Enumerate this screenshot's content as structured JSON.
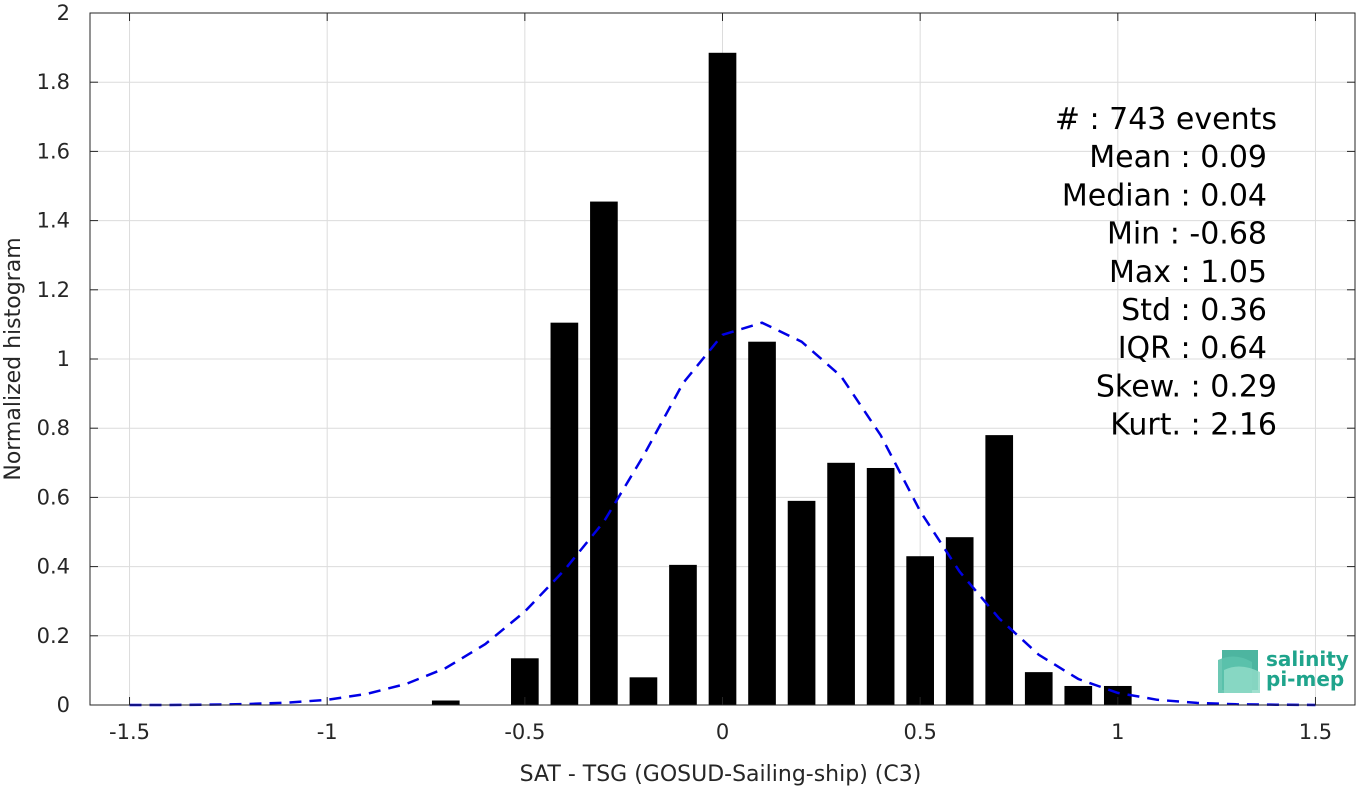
{
  "chart_data": {
    "type": "bar",
    "title": "",
    "xlabel": "SAT - TSG (GOSUD-Sailing-ship) (C3)",
    "ylabel": "Normalized histogram",
    "xlim": [
      -1.6,
      1.6
    ],
    "ylim": [
      0,
      2
    ],
    "grid": true,
    "x_ticks": [
      {
        "value": -1.5,
        "label": "-1.5"
      },
      {
        "value": -1,
        "label": "-1"
      },
      {
        "value": -0.5,
        "label": "-0.5"
      },
      {
        "value": 0,
        "label": "0"
      },
      {
        "value": 0.5,
        "label": "0.5"
      },
      {
        "value": 1,
        "label": "1"
      },
      {
        "value": 1.5,
        "label": "1.5"
      }
    ],
    "y_ticks": [
      {
        "value": 0,
        "label": "0"
      },
      {
        "value": 0.2,
        "label": "0.2"
      },
      {
        "value": 0.4,
        "label": "0.4"
      },
      {
        "value": 0.6,
        "label": "0.6"
      },
      {
        "value": 0.8,
        "label": "0.8"
      },
      {
        "value": 1,
        "label": "1"
      },
      {
        "value": 1.2,
        "label": "1.2"
      },
      {
        "value": 1.4,
        "label": "1.4"
      },
      {
        "value": 1.6,
        "label": "1.6"
      },
      {
        "value": 1.8,
        "label": "1.8"
      },
      {
        "value": 2,
        "label": "2"
      }
    ],
    "bar_width": 0.07,
    "bars": [
      {
        "x": -0.7,
        "y": 0.013
      },
      {
        "x": -0.5,
        "y": 0.135
      },
      {
        "x": -0.4,
        "y": 1.105
      },
      {
        "x": -0.3,
        "y": 1.455
      },
      {
        "x": -0.2,
        "y": 0.08
      },
      {
        "x": -0.1,
        "y": 0.405
      },
      {
        "x": 0.0,
        "y": 1.885
      },
      {
        "x": 0.1,
        "y": 1.05
      },
      {
        "x": 0.2,
        "y": 0.59
      },
      {
        "x": 0.3,
        "y": 0.7
      },
      {
        "x": 0.4,
        "y": 0.685
      },
      {
        "x": 0.5,
        "y": 0.43
      },
      {
        "x": 0.6,
        "y": 0.485
      },
      {
        "x": 0.7,
        "y": 0.78
      },
      {
        "x": 0.8,
        "y": 0.095
      },
      {
        "x": 0.9,
        "y": 0.055
      },
      {
        "x": 1.0,
        "y": 0.055
      }
    ],
    "fit_curve": {
      "style": "dashed",
      "color": "#0000e6",
      "points": [
        [
          -1.5,
          0.0
        ],
        [
          -1.4,
          0.0
        ],
        [
          -1.3,
          0.001
        ],
        [
          -1.2,
          0.003
        ],
        [
          -1.1,
          0.007
        ],
        [
          -1.0,
          0.015
        ],
        [
          -0.9,
          0.032
        ],
        [
          -0.8,
          0.061
        ],
        [
          -0.7,
          0.107
        ],
        [
          -0.6,
          0.176
        ],
        [
          -0.5,
          0.27
        ],
        [
          -0.4,
          0.39
        ],
        [
          -0.3,
          0.53
        ],
        [
          -0.2,
          0.72
        ],
        [
          -0.1,
          0.93
        ],
        [
          0.0,
          1.07
        ],
        [
          0.1,
          1.105
        ],
        [
          0.2,
          1.05
        ],
        [
          0.3,
          0.95
        ],
        [
          0.4,
          0.78
        ],
        [
          0.5,
          0.56
        ],
        [
          0.6,
          0.385
        ],
        [
          0.7,
          0.25
        ],
        [
          0.8,
          0.145
        ],
        [
          0.9,
          0.075
        ],
        [
          1.0,
          0.035
        ],
        [
          1.1,
          0.015
        ],
        [
          1.2,
          0.006
        ],
        [
          1.3,
          0.002
        ],
        [
          1.4,
          0.001
        ],
        [
          1.5,
          0.0
        ]
      ]
    },
    "bar_color": "#000000",
    "stats": [
      "#  : 743 events",
      "Mean : 0.09",
      "Median : 0.04",
      "Min : -0.68",
      "Max : 1.05",
      "Std : 0.36",
      "IQR : 0.64",
      "Skew. : 0.29",
      "Kurt. : 2.16"
    ]
  },
  "logo": {
    "line1": "salinity",
    "line2": "pi-mep",
    "color": "#1fa48c"
  }
}
